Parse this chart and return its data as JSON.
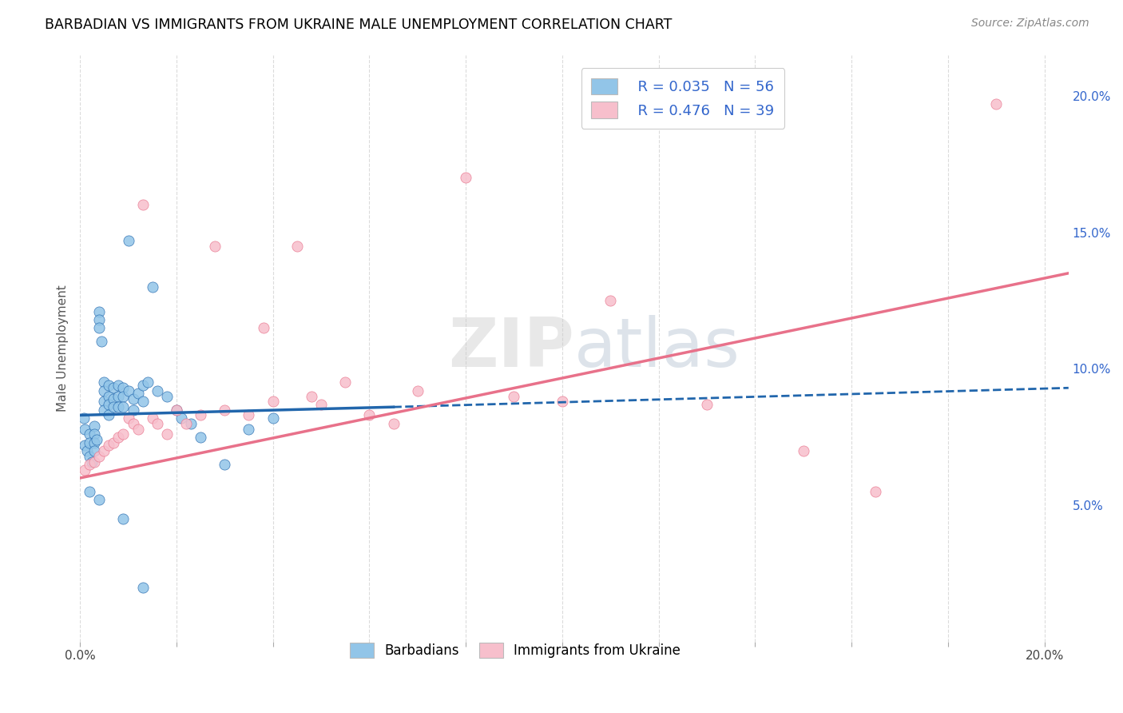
{
  "title": "BARBADIAN VS IMMIGRANTS FROM UKRAINE MALE UNEMPLOYMENT CORRELATION CHART",
  "source": "Source: ZipAtlas.com",
  "ylabel": "Male Unemployment",
  "watermark": "ZIP​atlas",
  "xlim": [
    0.0,
    0.205
  ],
  "ylim": [
    0.0,
    0.215
  ],
  "y_ticks_right": [
    0.05,
    0.1,
    0.15,
    0.2
  ],
  "y_tick_labels_right": [
    "5.0%",
    "10.0%",
    "15.0%",
    "20.0%"
  ],
  "legend_r1": "R = 0.035",
  "legend_n1": "N = 56",
  "legend_r2": "R = 0.476",
  "legend_n2": "N = 39",
  "legend_bottom1": "Barbadians",
  "legend_bottom2": "Immigrants from Ukraine",
  "color_blue": "#92c5e8",
  "color_pink": "#f7bfcc",
  "color_line_blue": "#2166ac",
  "color_line_pink": "#e8718a",
  "color_legend_blue": "#3366cc",
  "barbadians_x": [
    0.0008,
    0.001,
    0.001,
    0.0015,
    0.002,
    0.002,
    0.002,
    0.0025,
    0.003,
    0.003,
    0.003,
    0.003,
    0.0035,
    0.004,
    0.004,
    0.004,
    0.0045,
    0.005,
    0.005,
    0.005,
    0.005,
    0.006,
    0.006,
    0.006,
    0.006,
    0.007,
    0.007,
    0.007,
    0.008,
    0.008,
    0.008,
    0.009,
    0.009,
    0.009,
    0.01,
    0.01,
    0.011,
    0.011,
    0.012,
    0.013,
    0.013,
    0.014,
    0.015,
    0.016,
    0.018,
    0.02,
    0.021,
    0.023,
    0.025,
    0.03,
    0.035,
    0.04,
    0.002,
    0.004,
    0.009,
    0.013
  ],
  "barbadians_y": [
    0.082,
    0.078,
    0.072,
    0.07,
    0.076,
    0.073,
    0.068,
    0.066,
    0.079,
    0.076,
    0.073,
    0.07,
    0.074,
    0.121,
    0.118,
    0.115,
    0.11,
    0.095,
    0.092,
    0.088,
    0.085,
    0.094,
    0.09,
    0.087,
    0.083,
    0.093,
    0.089,
    0.086,
    0.094,
    0.09,
    0.086,
    0.093,
    0.09,
    0.086,
    0.147,
    0.092,
    0.089,
    0.085,
    0.091,
    0.094,
    0.088,
    0.095,
    0.13,
    0.092,
    0.09,
    0.085,
    0.082,
    0.08,
    0.075,
    0.065,
    0.078,
    0.082,
    0.055,
    0.052,
    0.045,
    0.02
  ],
  "ukraine_x": [
    0.001,
    0.002,
    0.003,
    0.004,
    0.005,
    0.006,
    0.007,
    0.008,
    0.009,
    0.01,
    0.011,
    0.012,
    0.013,
    0.015,
    0.016,
    0.018,
    0.02,
    0.022,
    0.025,
    0.028,
    0.03,
    0.035,
    0.038,
    0.04,
    0.045,
    0.048,
    0.05,
    0.055,
    0.06,
    0.065,
    0.07,
    0.08,
    0.09,
    0.1,
    0.11,
    0.13,
    0.15,
    0.165,
    0.19
  ],
  "ukraine_y": [
    0.063,
    0.065,
    0.066,
    0.068,
    0.07,
    0.072,
    0.073,
    0.075,
    0.076,
    0.082,
    0.08,
    0.078,
    0.16,
    0.082,
    0.08,
    0.076,
    0.085,
    0.08,
    0.083,
    0.145,
    0.085,
    0.083,
    0.115,
    0.088,
    0.145,
    0.09,
    0.087,
    0.095,
    0.083,
    0.08,
    0.092,
    0.17,
    0.09,
    0.088,
    0.125,
    0.087,
    0.07,
    0.055,
    0.197
  ],
  "blue_trend_x0": 0.0,
  "blue_trend_x_solid_end": 0.065,
  "blue_trend_x_end": 0.205,
  "blue_trend_y0": 0.083,
  "blue_trend_y_solid_end": 0.086,
  "blue_trend_y_end": 0.093,
  "pink_trend_x0": 0.0,
  "pink_trend_x_end": 0.205,
  "pink_trend_y0": 0.06,
  "pink_trend_y_end": 0.135
}
